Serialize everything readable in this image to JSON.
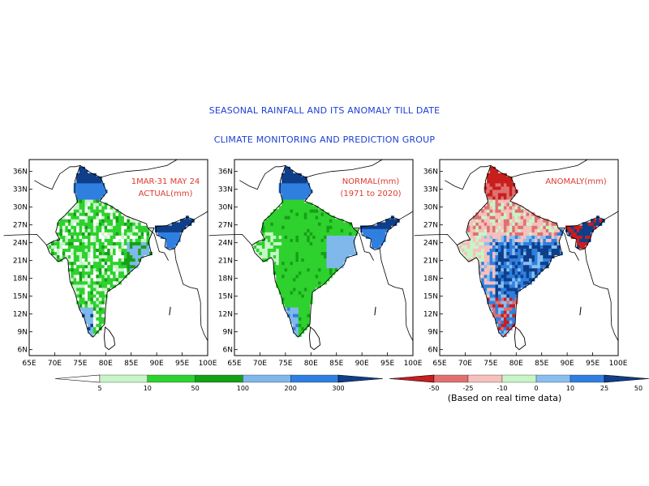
{
  "title": "SEASONAL RAINFALL AND ITS ANOMALY TILL DATE",
  "subtitle": "CLIMATE MONITORING AND PREDICTION GROUP",
  "axes": {
    "lat_ticks": [
      "36N",
      "33N",
      "30N",
      "27N",
      "24N",
      "21N",
      "18N",
      "15N",
      "12N",
      "9N",
      "6N"
    ],
    "lon_ticks": [
      "65E",
      "70E",
      "75E",
      "80E",
      "85E",
      "90E",
      "95E",
      "100E"
    ]
  },
  "panels": [
    {
      "label_lines": [
        "1MAR-31 MAY 24",
        "ACTUAL(mm)"
      ],
      "palette": "rain",
      "pattern": "actual"
    },
    {
      "label_lines": [
        "NORMAL(mm)",
        "(1971 to 2020)"
      ],
      "palette": "rain",
      "pattern": "normal"
    },
    {
      "label_lines": [
        "ANOMALY(mm)"
      ],
      "palette": "anom",
      "pattern": "anomaly"
    }
  ],
  "colorbar_rain": {
    "labels": [
      "5",
      "10",
      "50",
      "100",
      "200",
      "300"
    ],
    "colors": [
      "#ffffff",
      "#c8f5c8",
      "#2ed12e",
      "#16a016",
      "#7fb8ea",
      "#2f7fe0",
      "#0f3f8a"
    ]
  },
  "colorbar_anom": {
    "labels": [
      "-50",
      "-25",
      "-10",
      "0",
      "10",
      "25",
      "50"
    ],
    "colors": [
      "#c81e1e",
      "#e07070",
      "#f6c0bc",
      "#c8f5c8",
      "#88bff0",
      "#2f7fe0",
      "#0f3f8a"
    ],
    "note": "(Based on real time data)"
  }
}
